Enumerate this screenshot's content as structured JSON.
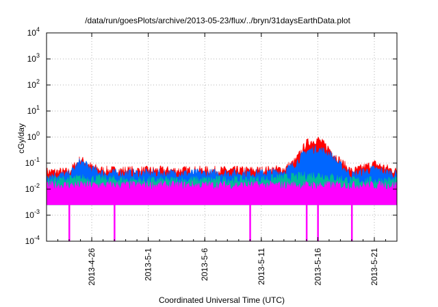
{
  "chart_data": {
    "type": "area",
    "title": "/data/run/goesPlots/archive/2013-05-23/flux/../bryn/31daysEarthData.plot",
    "xlabel": "Coordinated Universal Time (UTC)",
    "ylabel": "cGy/day",
    "yscale": "log",
    "ylim": [
      0.0001,
      10000
    ],
    "xlim": [
      "2013-04-22",
      "2013-05-23"
    ],
    "grid": true,
    "x_ticks": [
      "2013-4-26",
      "2013-5-1",
      "2013-5-6",
      "2013-5-11",
      "2013-5-16",
      "2013-5-21"
    ],
    "y_ticks": [
      {
        "base": "10",
        "exp": "-4"
      },
      {
        "base": "10",
        "exp": "-3"
      },
      {
        "base": "10",
        "exp": "-2"
      },
      {
        "base": "10",
        "exp": "-1"
      },
      {
        "base": "10",
        "exp": "0"
      },
      {
        "base": "10",
        "exp": "1"
      },
      {
        "base": "10",
        "exp": "2"
      },
      {
        "base": "10",
        "exp": "3"
      },
      {
        "base": "10",
        "exp": "4"
      }
    ],
    "series": [
      {
        "color": "#ff0000",
        "x": [
          "2013-04-22",
          "2013-04-24",
          "2013-04-25",
          "2013-04-26",
          "2013-04-27",
          "2013-05-01",
          "2013-05-06",
          "2013-05-11",
          "2013-05-13",
          "2013-05-14",
          "2013-05-15",
          "2013-05-16",
          "2013-05-17",
          "2013-05-18",
          "2013-05-19",
          "2013-05-21",
          "2013-05-23"
        ],
        "y": [
          0.04,
          0.04,
          0.12,
          0.06,
          0.045,
          0.045,
          0.045,
          0.045,
          0.05,
          0.1,
          0.5,
          0.7,
          0.3,
          0.1,
          0.04,
          0.08,
          0.04
        ]
      },
      {
        "color": "#0066ff",
        "x": [
          "2013-04-22",
          "2013-04-24",
          "2013-04-25",
          "2013-04-26",
          "2013-04-27",
          "2013-05-01",
          "2013-05-06",
          "2013-05-11",
          "2013-05-13",
          "2013-05-14",
          "2013-05-15",
          "2013-05-16",
          "2013-05-17",
          "2013-05-18",
          "2013-05-19",
          "2013-05-21",
          "2013-05-23"
        ],
        "y": [
          0.03,
          0.03,
          0.1,
          0.05,
          0.035,
          0.035,
          0.035,
          0.035,
          0.04,
          0.08,
          0.25,
          0.3,
          0.2,
          0.07,
          0.03,
          0.05,
          0.03
        ]
      },
      {
        "color": "#00bb99",
        "x": [
          "2013-04-22",
          "2013-04-25",
          "2013-05-01",
          "2013-05-11",
          "2013-05-16",
          "2013-05-19",
          "2013-05-23"
        ],
        "y": [
          0.018,
          0.022,
          0.018,
          0.02,
          0.03,
          0.018,
          0.018
        ]
      },
      {
        "color": "#ff00ff",
        "x": [
          "2013-04-22",
          "2013-05-01",
          "2013-05-11",
          "2013-05-16",
          "2013-05-23"
        ],
        "y": [
          0.012,
          0.012,
          0.012,
          0.012,
          0.012
        ],
        "floor": 0.003,
        "dips": [
          "2013-04-24",
          "2013-04-28",
          "2013-05-10",
          "2013-05-15",
          "2013-05-16",
          "2013-05-19"
        ]
      }
    ]
  }
}
